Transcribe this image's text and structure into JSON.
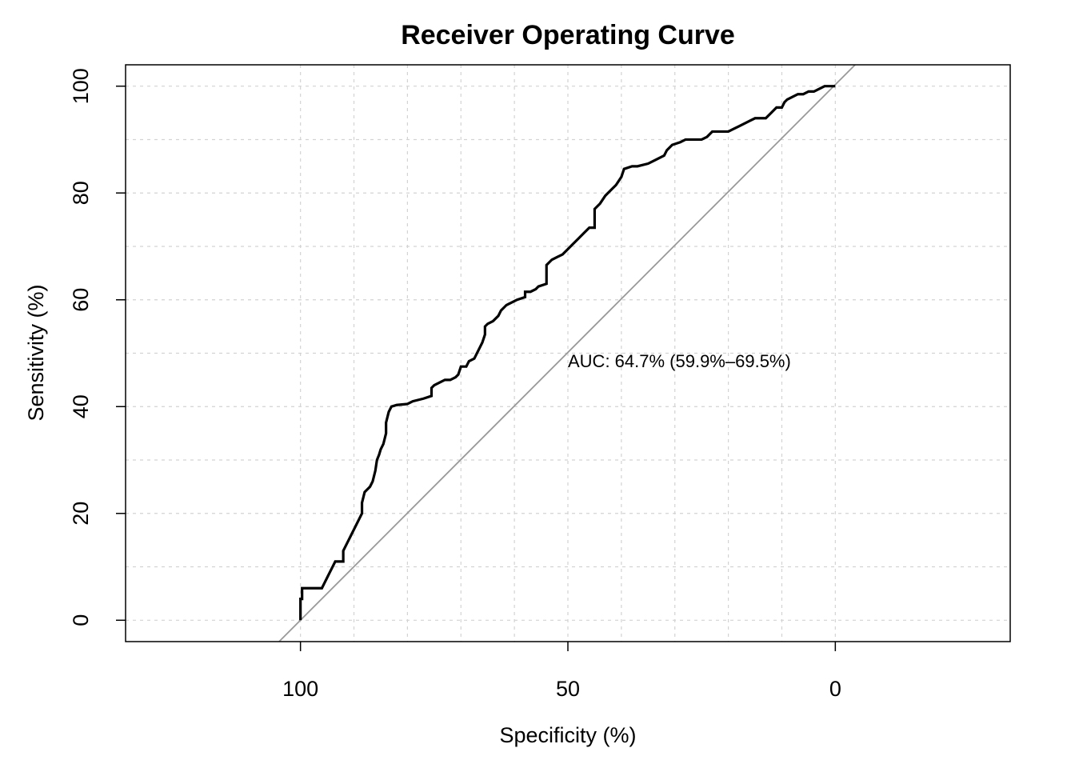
{
  "chart_data": {
    "type": "line",
    "title": "Receiver Operating Curve",
    "xlabel": "Specificity (%)",
    "ylabel": "Sensitivity (%)",
    "x_reversed": true,
    "xlim": [
      132.7,
      -32.7
    ],
    "ylim": [
      -4,
      104
    ],
    "x_ticks": [
      100,
      50,
      0
    ],
    "y_ticks": [
      0,
      20,
      40,
      60,
      80,
      100
    ],
    "grid": true,
    "grid_x": [
      100,
      90,
      80,
      70,
      60,
      50,
      40,
      30,
      20,
      10,
      0
    ],
    "grid_y": [
      0,
      10,
      20,
      30,
      40,
      50,
      60,
      70,
      80,
      90,
      100
    ],
    "annotation": "AUC: 64.7% (59.9%–69.5%)",
    "colors": {
      "curve": "#000000",
      "diagonal": "#999999",
      "grid": "#d3d3d3"
    },
    "series": [
      {
        "values": [
          [
            100,
            0
          ],
          [
            100,
            4
          ],
          [
            99.7,
            4
          ],
          [
            99.7,
            6
          ],
          [
            96,
            6
          ],
          [
            95.5,
            7
          ],
          [
            95,
            8
          ],
          [
            94.5,
            9
          ],
          [
            94,
            10
          ],
          [
            93.5,
            11
          ],
          [
            92,
            11
          ],
          [
            92,
            13
          ],
          [
            91.5,
            14
          ],
          [
            91,
            15
          ],
          [
            90.5,
            16
          ],
          [
            90,
            17
          ],
          [
            89.5,
            18
          ],
          [
            89,
            19
          ],
          [
            88.5,
            20
          ],
          [
            88.5,
            22
          ],
          [
            88,
            24
          ],
          [
            87.5,
            24.5
          ],
          [
            87,
            25
          ],
          [
            86.5,
            26
          ],
          [
            86,
            28
          ],
          [
            85.7,
            30
          ],
          [
            85.3,
            31
          ],
          [
            85,
            32
          ],
          [
            84.5,
            33
          ],
          [
            84,
            35
          ],
          [
            84,
            37
          ],
          [
            83.5,
            39
          ],
          [
            83,
            40
          ],
          [
            82,
            40.3
          ],
          [
            80,
            40.5
          ],
          [
            79,
            41
          ],
          [
            77,
            41.5
          ],
          [
            75.5,
            42
          ],
          [
            75.5,
            43.5
          ],
          [
            75,
            44
          ],
          [
            74,
            44.5
          ],
          [
            73,
            45
          ],
          [
            72,
            45
          ],
          [
            71,
            45.5
          ],
          [
            70.5,
            46
          ],
          [
            70,
            47.5
          ],
          [
            69,
            47.5
          ],
          [
            68.5,
            48.5
          ],
          [
            67.5,
            49
          ],
          [
            67,
            50
          ],
          [
            66.5,
            51
          ],
          [
            66,
            52
          ],
          [
            65.5,
            53.5
          ],
          [
            65.5,
            55
          ],
          [
            65,
            55.5
          ],
          [
            64,
            56
          ],
          [
            63,
            57
          ],
          [
            62.5,
            58
          ],
          [
            62,
            58.5
          ],
          [
            61.5,
            59
          ],
          [
            60.5,
            59.5
          ],
          [
            59.5,
            60
          ],
          [
            58,
            60.5
          ],
          [
            58,
            61.5
          ],
          [
            57,
            61.5
          ],
          [
            56,
            62
          ],
          [
            55.5,
            62.5
          ],
          [
            54,
            63
          ],
          [
            54,
            66.5
          ],
          [
            53,
            67.5
          ],
          [
            52,
            68
          ],
          [
            51,
            68.5
          ],
          [
            50,
            69.5
          ],
          [
            49,
            70.5
          ],
          [
            48,
            71.5
          ],
          [
            47,
            72.5
          ],
          [
            46,
            73.5
          ],
          [
            45,
            73.5
          ],
          [
            45,
            77
          ],
          [
            44,
            78
          ],
          [
            43,
            79.5
          ],
          [
            42,
            80.5
          ],
          [
            41,
            81.5
          ],
          [
            40,
            83
          ],
          [
            39.5,
            84.5
          ],
          [
            38,
            85
          ],
          [
            37,
            85
          ],
          [
            35,
            85.5
          ],
          [
            34,
            86
          ],
          [
            33,
            86.5
          ],
          [
            32,
            87
          ],
          [
            31.5,
            88
          ],
          [
            30.5,
            89
          ],
          [
            29,
            89.5
          ],
          [
            28,
            90
          ],
          [
            25,
            90
          ],
          [
            24,
            90.5
          ],
          [
            23,
            91.5
          ],
          [
            20,
            91.5
          ],
          [
            19,
            92
          ],
          [
            18,
            92.5
          ],
          [
            16,
            93.5
          ],
          [
            15,
            94
          ],
          [
            13,
            94
          ],
          [
            12,
            95
          ],
          [
            11,
            96
          ],
          [
            10,
            96
          ],
          [
            9.5,
            97
          ],
          [
            9,
            97.5
          ],
          [
            8,
            98
          ],
          [
            7,
            98.5
          ],
          [
            6,
            98.5
          ],
          [
            5,
            99
          ],
          [
            4,
            99
          ],
          [
            3,
            99.5
          ],
          [
            2,
            100
          ],
          [
            0,
            100
          ]
        ]
      }
    ],
    "diagonal": [
      [
        104,
        -4
      ],
      [
        -3.7,
        104
      ]
    ]
  }
}
